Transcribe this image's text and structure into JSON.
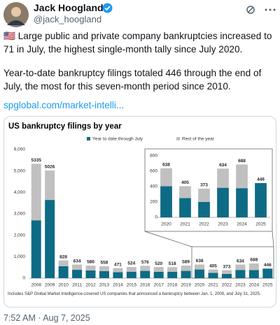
{
  "tweet": {
    "name": "Jack Hoogland",
    "handle": "@jack_hoogland",
    "paragraphs": [
      "🇺🇸 Large public and private company bankruptcies increased to 71 in July, the highest single-month tally since July 2020.",
      "Year-to-date bankruptcy filings totaled 446 through the end of July, the most for this seven-month period since 2010."
    ],
    "link": "spglobal.com/market-intelli...",
    "timestamp": "7:52 AM · Aug 7, 2025",
    "footnote": "Includes S&P Global Market Intelligence-covered US companies that announced a bankruptcy between Jan. 1, 2008, and July 31, 2025."
  },
  "chart_data": [
    {
      "type": "bar",
      "stacked": true,
      "title": "US bankruptcy filings by year",
      "categories": [
        "2008",
        "2009",
        "2010",
        "2011",
        "2012",
        "2013",
        "2014",
        "2015",
        "2016",
        "2017",
        "2018",
        "2019",
        "2020",
        "2021",
        "2022",
        "2023",
        "2024",
        "2025"
      ],
      "series": [
        {
          "name": "Year to date through July",
          "color": "#0e6b85",
          "values": [
            2700,
            3650,
            560,
            390,
            360,
            330,
            280,
            300,
            340,
            300,
            300,
            340,
            405,
            250,
            200,
            385,
            380,
            446
          ]
        },
        {
          "name": "Rest of the year",
          "color": "#c0c0c0",
          "values": [
            2635,
            1376,
            268,
            244,
            226,
            228,
            191,
            224,
            236,
            220,
            218,
            249,
            233,
            155,
            173,
            249,
            308,
            0
          ]
        }
      ],
      "totals": [
        5335,
        5026,
        828,
        634,
        586,
        558,
        471,
        524,
        576,
        520,
        518,
        589,
        638,
        405,
        373,
        634,
        688,
        446
      ],
      "ylim": [
        0,
        6000
      ],
      "yticks": [
        0,
        {
          "value": 1000,
          "label": "1,000"
        },
        {
          "value": 2000,
          "label": "2,000"
        },
        {
          "value": 3000,
          "label": "3,000"
        },
        {
          "value": 4000,
          "label": "4,000"
        },
        {
          "value": 5000,
          "label": "5,000"
        },
        {
          "value": 6000,
          "label": "6,000"
        }
      ]
    },
    {
      "type": "bar",
      "stacked": true,
      "categories": [
        "2020",
        "2021",
        "2022",
        "2023",
        "2024",
        "2025"
      ],
      "series": [
        {
          "color": "#0e6b85",
          "values": [
            405,
            250,
            200,
            385,
            380,
            446
          ]
        },
        {
          "color": "#c0c0c0",
          "values": [
            233,
            155,
            173,
            249,
            308,
            0
          ]
        }
      ],
      "totals": [
        638,
        405,
        373,
        634,
        688,
        446
      ],
      "ylim": [
        0,
        800
      ],
      "yticks": [
        0,
        200,
        400,
        600,
        800
      ]
    }
  ]
}
